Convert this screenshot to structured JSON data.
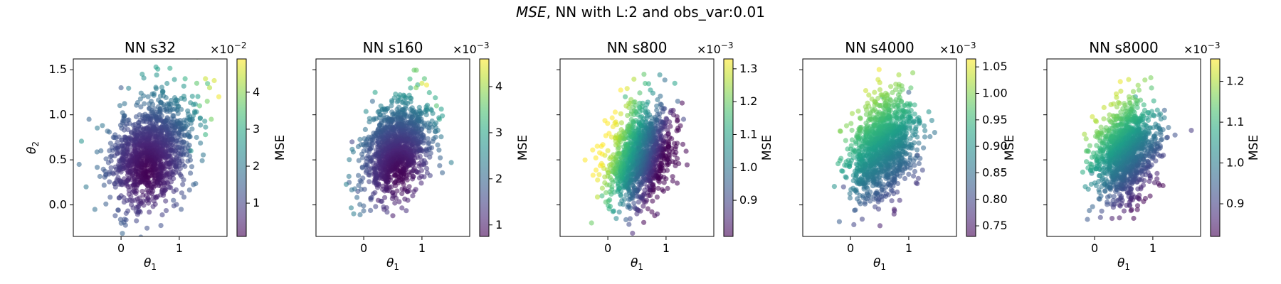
{
  "figure": {
    "title_italic": "MSE",
    "title_rest": ", NN with L:2 and obs_var:0.01"
  },
  "colormap": "viridis",
  "chart_data": [
    {
      "type": "scatter",
      "title": "NN s32",
      "xlabel": "θ1",
      "ylabel": "θ2",
      "xlim": [
        -0.82,
        1.82
      ],
      "ylim": [
        -0.35,
        1.62
      ],
      "xticks": [
        0,
        1
      ],
      "yticks": [
        0.0,
        0.5,
        1.0,
        1.5
      ],
      "ytick_labels": [
        "0.0",
        "0.5",
        "1.0",
        "1.5"
      ],
      "colorbar": {
        "label": "MSE",
        "offset_text": "×10^-2",
        "sci_base": "×10",
        "sci_exp": "−2",
        "min": 0.1,
        "max": 4.9,
        "ticks": [
          1,
          2,
          3,
          4
        ],
        "tick_labels": [
          "1",
          "2",
          "3",
          "4"
        ]
      },
      "cloud": {
        "center": [
          0.5,
          0.6
        ],
        "spread": [
          0.34,
          0.28
        ],
        "n": 1300,
        "seed": 11
      },
      "color_model": {
        "kind": "radial",
        "anchor": [
          0.45,
          0.35
        ],
        "scale": 0.22,
        "power": 1.35
      },
      "outliers": [
        {
          "x": -0.72,
          "y": 0.45,
          "c": 1.7
        },
        {
          "x": -0.6,
          "y": 0.2,
          "c": 2.0
        },
        {
          "x": -0.45,
          "y": -0.05,
          "c": 1.8
        },
        {
          "x": -0.1,
          "y": -0.12,
          "c": 1.2
        },
        {
          "x": -0.55,
          "y": 0.95,
          "c": 1.6
        },
        {
          "x": 0.0,
          "y": 1.3,
          "c": 1.4
        },
        {
          "x": 0.6,
          "y": 1.53,
          "c": 2.7
        },
        {
          "x": 1.1,
          "y": 1.4,
          "c": 3.1
        },
        {
          "x": 1.3,
          "y": 1.35,
          "c": 3.6
        },
        {
          "x": 1.45,
          "y": 1.4,
          "c": 4.5
        },
        {
          "x": 1.52,
          "y": 1.3,
          "c": 4.3
        },
        {
          "x": 1.6,
          "y": 1.38,
          "c": 4.6
        },
        {
          "x": 1.68,
          "y": 1.2,
          "c": 4.8
        },
        {
          "x": 1.48,
          "y": 1.15,
          "c": 3.8
        },
        {
          "x": 1.35,
          "y": 1.1,
          "c": 3.5
        },
        {
          "x": 1.55,
          "y": 0.95,
          "c": 3.8
        },
        {
          "x": 1.45,
          "y": 0.78,
          "c": 3.2
        },
        {
          "x": 1.2,
          "y": 0.6,
          "c": 2.6
        },
        {
          "x": 0.35,
          "y": 0.02,
          "c": 0.4
        },
        {
          "x": 0.9,
          "y": 0.05,
          "c": 1.3
        }
      ]
    },
    {
      "type": "scatter",
      "title": "NN s160",
      "xlabel": "θ1",
      "ylabel": "",
      "xlim": [
        -0.82,
        1.82
      ],
      "ylim": [
        -0.35,
        1.62
      ],
      "xticks": [
        0,
        1
      ],
      "yticks": [
        0.0,
        0.5,
        1.0,
        1.5
      ],
      "colorbar": {
        "label": "MSE",
        "offset_text": "×10^-3",
        "sci_base": "×10",
        "sci_exp": "−3",
        "min": 0.75,
        "max": 4.6,
        "ticks": [
          1,
          2,
          3,
          4
        ],
        "tick_labels": [
          "1",
          "2",
          "3",
          "4"
        ]
      },
      "cloud": {
        "center": [
          0.55,
          0.62
        ],
        "spread": [
          0.28,
          0.24
        ],
        "n": 1200,
        "seed": 23
      },
      "color_model": {
        "kind": "radial",
        "anchor": [
          0.62,
          0.3
        ],
        "scale": 0.25,
        "power": 1.5
      },
      "outliers": [
        {
          "x": -0.25,
          "y": 0.25,
          "c": 1.8
        },
        {
          "x": -0.1,
          "y": 0.15,
          "c": 1.6
        },
        {
          "x": -0.2,
          "y": 0.7,
          "c": 1.5
        },
        {
          "x": 0.15,
          "y": 1.15,
          "c": 2.0
        },
        {
          "x": 0.9,
          "y": 1.3,
          "c": 3.8
        },
        {
          "x": 1.0,
          "y": 1.35,
          "c": 4.3
        },
        {
          "x": 1.08,
          "y": 1.33,
          "c": 4.5
        },
        {
          "x": 1.25,
          "y": 1.1,
          "c": 3.5
        },
        {
          "x": 1.3,
          "y": 0.95,
          "c": 3.0
        },
        {
          "x": 0.35,
          "y": -0.05,
          "c": 1.2
        },
        {
          "x": 0.5,
          "y": -0.12,
          "c": 1.0
        },
        {
          "x": 0.25,
          "y": 0.05,
          "c": 1.0
        }
      ]
    },
    {
      "type": "scatter",
      "title": "NN s800",
      "xlabel": "θ1",
      "ylabel": "",
      "xlim": [
        -0.82,
        1.82
      ],
      "ylim": [
        -0.35,
        1.62
      ],
      "xticks": [
        0,
        1
      ],
      "yticks": [
        0.0,
        0.5,
        1.0,
        1.5
      ],
      "colorbar": {
        "label": "MSE",
        "offset_text": "×10^-3",
        "sci_base": "×10",
        "sci_exp": "−3",
        "min": 0.79,
        "max": 1.33,
        "ticks": [
          0.9,
          1.0,
          1.1,
          1.2,
          1.3
        ],
        "tick_labels": [
          "0.9",
          "1.0",
          "1.1",
          "1.2",
          "1.3"
        ]
      },
      "cloud": {
        "center": [
          0.55,
          0.55
        ],
        "spread": [
          0.28,
          0.26
        ],
        "n": 1200,
        "seed": 37
      },
      "color_model": {
        "kind": "linear",
        "ref": [
          0.55,
          0.55
        ],
        "grad": [
          -0.95,
          0.45
        ],
        "base": 1.0,
        "scale_x": 0.36
      },
      "outliers": [
        {
          "x": -0.28,
          "y": -0.2,
          "c": 1.2
        },
        {
          "x": -0.1,
          "y": 0.1,
          "c": 1.15
        },
        {
          "x": -0.05,
          "y": 0.55,
          "c": 1.3
        },
        {
          "x": 1.15,
          "y": 1.35,
          "c": 1.1
        },
        {
          "x": 1.2,
          "y": 1.15,
          "c": 0.95
        },
        {
          "x": 1.3,
          "y": 0.95,
          "c": 0.9
        },
        {
          "x": 0.85,
          "y": -0.1,
          "c": 0.82
        },
        {
          "x": 0.5,
          "y": -0.05,
          "c": 0.85
        },
        {
          "x": 0.3,
          "y": 1.2,
          "c": 1.15
        }
      ]
    },
    {
      "type": "scatter",
      "title": "NN s4000",
      "xlabel": "θ1",
      "ylabel": "",
      "xlim": [
        -0.82,
        1.82
      ],
      "ylim": [
        -0.35,
        1.62
      ],
      "xticks": [
        0,
        1
      ],
      "yticks": [
        0.0,
        0.5,
        1.0,
        1.5
      ],
      "colorbar": {
        "label": "MSE",
        "offset_text": "×10^-3",
        "sci_base": "×10",
        "sci_exp": "−3",
        "min": 0.73,
        "max": 1.065,
        "ticks": [
          0.75,
          0.8,
          0.85,
          0.9,
          0.95,
          1.0,
          1.05
        ],
        "tick_labels": [
          "0.75",
          "0.80",
          "0.85",
          "0.90",
          "0.95",
          "1.00",
          "1.05"
        ]
      },
      "cloud": {
        "center": [
          0.55,
          0.62
        ],
        "spread": [
          0.28,
          0.27
        ],
        "n": 1200,
        "seed": 51
      },
      "color_model": {
        "kind": "linear",
        "ref": [
          0.55,
          0.62
        ],
        "grad": [
          -0.45,
          0.9
        ],
        "base": 0.9,
        "scale_x": 0.2
      },
      "outliers": [
        {
          "x": -0.05,
          "y": 0.62,
          "c": 0.95
        },
        {
          "x": -0.12,
          "y": 0.2,
          "c": 0.8
        },
        {
          "x": 1.0,
          "y": 1.25,
          "c": 0.83
        },
        {
          "x": 0.55,
          "y": 1.2,
          "c": 0.95
        },
        {
          "x": 1.15,
          "y": 0.55,
          "c": 0.78
        },
        {
          "x": 0.75,
          "y": -0.05,
          "c": 0.75
        }
      ]
    },
    {
      "type": "scatter",
      "title": "NN s8000",
      "xlabel": "θ1",
      "ylabel": "",
      "xlim": [
        -0.82,
        1.82
      ],
      "ylim": [
        -0.35,
        1.62
      ],
      "xticks": [
        0,
        1
      ],
      "yticks": [
        0.0,
        0.5,
        1.0,
        1.5
      ],
      "colorbar": {
        "label": "MSE",
        "offset_text": "×10^-3",
        "sci_base": "×10",
        "sci_exp": "−3",
        "min": 0.82,
        "max": 1.255,
        "ticks": [
          0.9,
          1.0,
          1.1,
          1.2
        ],
        "tick_labels": [
          "0.9",
          "1.0",
          "1.1",
          "1.2"
        ]
      },
      "cloud": {
        "center": [
          0.55,
          0.6
        ],
        "spread": [
          0.27,
          0.25
        ],
        "n": 1200,
        "seed": 67
      },
      "color_model": {
        "kind": "linear",
        "ref": [
          0.55,
          0.6
        ],
        "grad": [
          -0.55,
          0.85
        ],
        "base": 1.02,
        "scale_x": 0.25
      },
      "outliers": [
        {
          "x": -0.12,
          "y": 0.6,
          "c": 1.1
        },
        {
          "x": -0.05,
          "y": 0.35,
          "c": 1.0
        },
        {
          "x": 0.3,
          "y": -0.15,
          "c": 0.85
        },
        {
          "x": 1.2,
          "y": 1.05,
          "c": 0.95
        },
        {
          "x": 1.25,
          "y": 0.75,
          "c": 0.9
        },
        {
          "x": 0.7,
          "y": 1.2,
          "c": 1.05
        },
        {
          "x": 0.6,
          "y": 0.0,
          "c": 0.88
        }
      ]
    }
  ]
}
